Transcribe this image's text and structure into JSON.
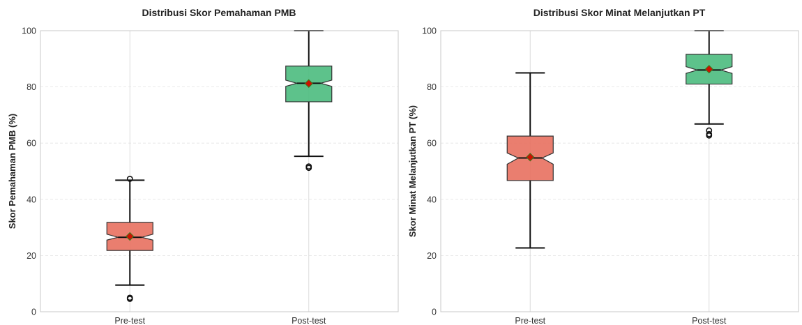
{
  "chart_data": [
    {
      "type": "box",
      "title": "Distribusi Skor Pemahaman PMB",
      "xlabel": "",
      "ylabel": "Skor Pemahaman PMB (%)",
      "ylim": [
        0,
        100
      ],
      "yticks": [
        "0",
        "20",
        "40",
        "60",
        "80",
        "100"
      ],
      "grid": true,
      "notched": true,
      "categories": [
        "Pre-test",
        "Post-test"
      ],
      "boxes": [
        {
          "category": "Pre-test",
          "whisker_low": 9.5,
          "q1": 21.8,
          "median": 26.5,
          "q3": 31.8,
          "whisker_high": 46.8,
          "mean": 26.8,
          "notch_low": 25.5,
          "notch_high": 27.6,
          "outliers": [
            4.6,
            5.0,
            47.3
          ],
          "color": "#e8705f"
        },
        {
          "category": "Post-test",
          "whisker_low": 55.3,
          "q1": 74.7,
          "median": 81.3,
          "q3": 87.4,
          "whisker_high": 100.0,
          "mean": 81.2,
          "notch_low": 80.2,
          "notch_high": 82.4,
          "outliers": [
            51.2,
            51.7
          ],
          "color": "#4bbb7e"
        }
      ]
    },
    {
      "type": "box",
      "title": "Distribusi Skor Minat Melanjutkan PT",
      "xlabel": "",
      "ylabel": "Skor Minat Melanjutkan PT (%)",
      "ylim": [
        0,
        100
      ],
      "yticks": [
        "0",
        "20",
        "40",
        "60",
        "80",
        "100"
      ],
      "grid": true,
      "notched": true,
      "categories": [
        "Pre-test",
        "Post-test"
      ],
      "boxes": [
        {
          "category": "Pre-test",
          "whisker_low": 22.7,
          "q1": 46.7,
          "median": 54.7,
          "q3": 62.5,
          "whisker_high": 85.0,
          "mean": 55.0,
          "notch_low": 52.5,
          "notch_high": 56.5,
          "outliers": [],
          "color": "#e8705f"
        },
        {
          "category": "Post-test",
          "whisker_low": 66.8,
          "q1": 81.0,
          "median": 86.0,
          "q3": 91.6,
          "whisker_high": 100.0,
          "mean": 86.3,
          "notch_low": 84.8,
          "notch_high": 87.2,
          "outliers": [
            62.7,
            63.2,
            64.5
          ],
          "color": "#4bbb7e"
        }
      ]
    }
  ],
  "mean_marker_color": "#cc1100"
}
